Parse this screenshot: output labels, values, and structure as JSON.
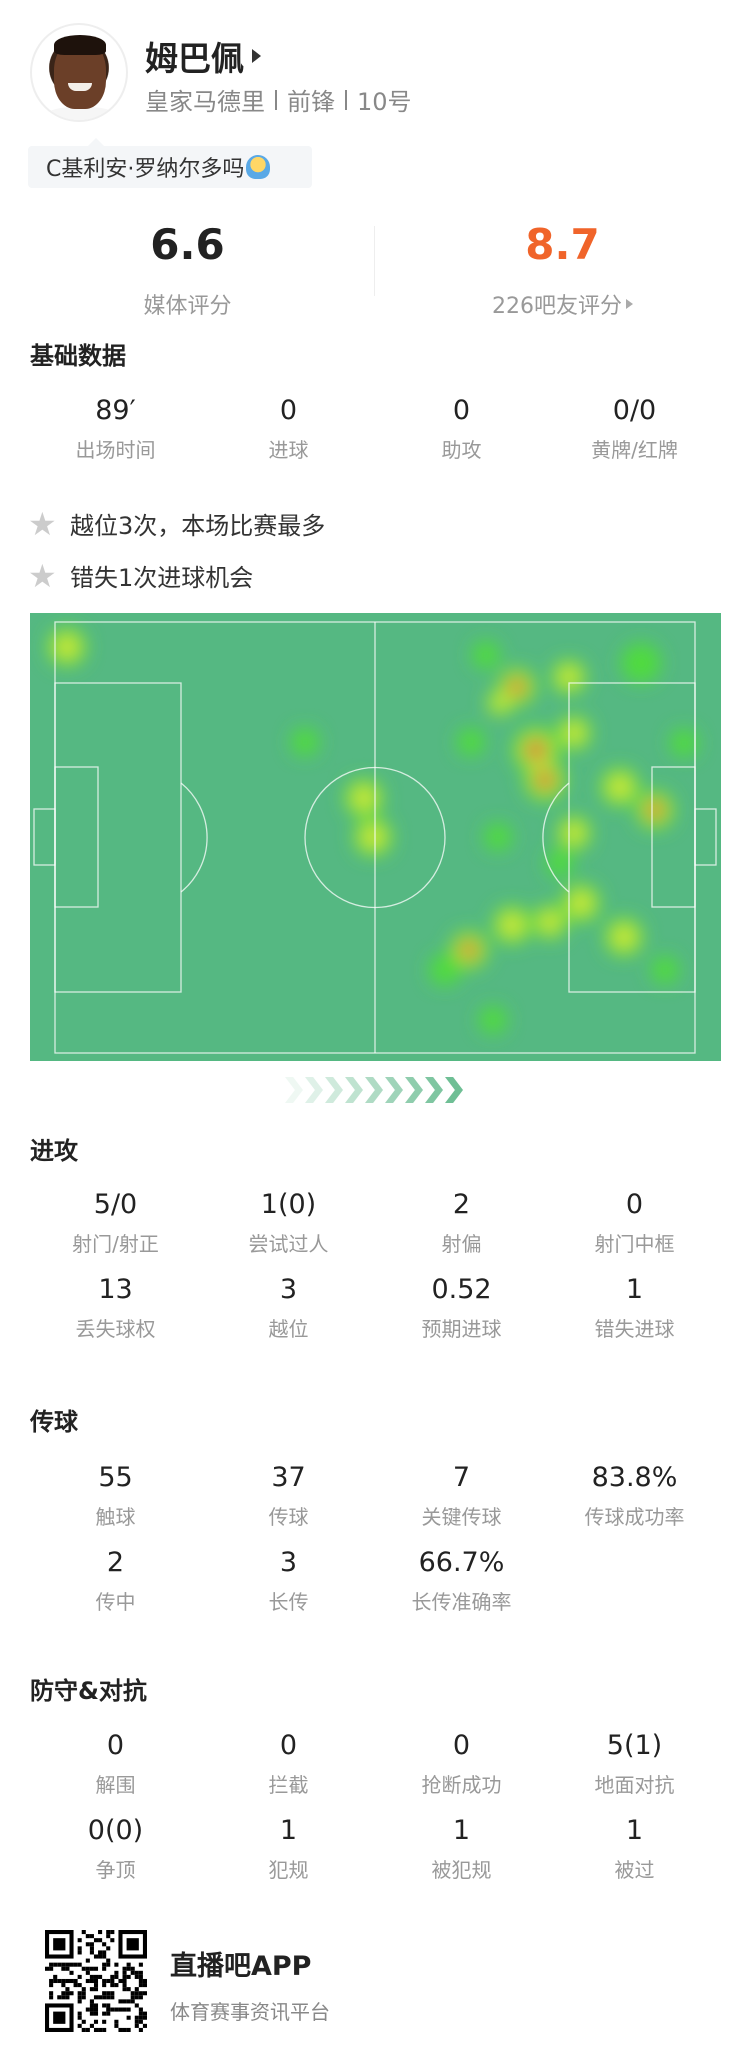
{
  "player": {
    "name": "姆巴佩",
    "team": "皇家马德里",
    "position": "前锋",
    "number": "10号",
    "tag": "C基利安·罗纳尔多吗",
    "tag_emoji": "smiling-face-emoji"
  },
  "ratings": {
    "media": {
      "value": "6.6",
      "label": "媒体评分"
    },
    "fans": {
      "value": "8.7",
      "label": "226吧友评分",
      "color": "#f0642a"
    }
  },
  "basic": {
    "title": "基础数据",
    "stats": [
      {
        "v": "89′",
        "l": "出场时间"
      },
      {
        "v": "0",
        "l": "进球"
      },
      {
        "v": "0",
        "l": "助攻"
      },
      {
        "v": "0/0",
        "l": "黄牌/红牌"
      }
    ]
  },
  "highlights": [
    "越位3次，本场比赛最多",
    "错失1次进球机会"
  ],
  "heatmap": {
    "pitch_color": "#55b882",
    "attack_direction": "right"
  },
  "attack": {
    "title": "进攻",
    "stats": [
      {
        "v": "5/0",
        "l": "射门/射正"
      },
      {
        "v": "1(0)",
        "l": "尝试过人"
      },
      {
        "v": "2",
        "l": "射偏"
      },
      {
        "v": "0",
        "l": "射门中框"
      },
      {
        "v": "13",
        "l": "丢失球权"
      },
      {
        "v": "3",
        "l": "越位"
      },
      {
        "v": "0.52",
        "l": "预期进球"
      },
      {
        "v": "1",
        "l": "错失进球"
      }
    ]
  },
  "passing": {
    "title": "传球",
    "stats": [
      {
        "v": "55",
        "l": "触球"
      },
      {
        "v": "37",
        "l": "传球"
      },
      {
        "v": "7",
        "l": "关键传球"
      },
      {
        "v": "83.8%",
        "l": "传球成功率"
      },
      {
        "v": "2",
        "l": "传中"
      },
      {
        "v": "3",
        "l": "长传"
      },
      {
        "v": "66.7%",
        "l": "长传准确率"
      }
    ]
  },
  "defense": {
    "title": "防守&对抗",
    "stats": [
      {
        "v": "0",
        "l": "解围"
      },
      {
        "v": "0",
        "l": "拦截"
      },
      {
        "v": "0",
        "l": "抢断成功"
      },
      {
        "v": "5(1)",
        "l": "地面对抗"
      },
      {
        "v": "0(0)",
        "l": "争顶"
      },
      {
        "v": "1",
        "l": "犯规"
      },
      {
        "v": "1",
        "l": "被犯规"
      },
      {
        "v": "1",
        "l": "被过"
      }
    ]
  },
  "footer": {
    "app_name": "直播吧APP",
    "slogan": "体育赛事资讯平台"
  }
}
